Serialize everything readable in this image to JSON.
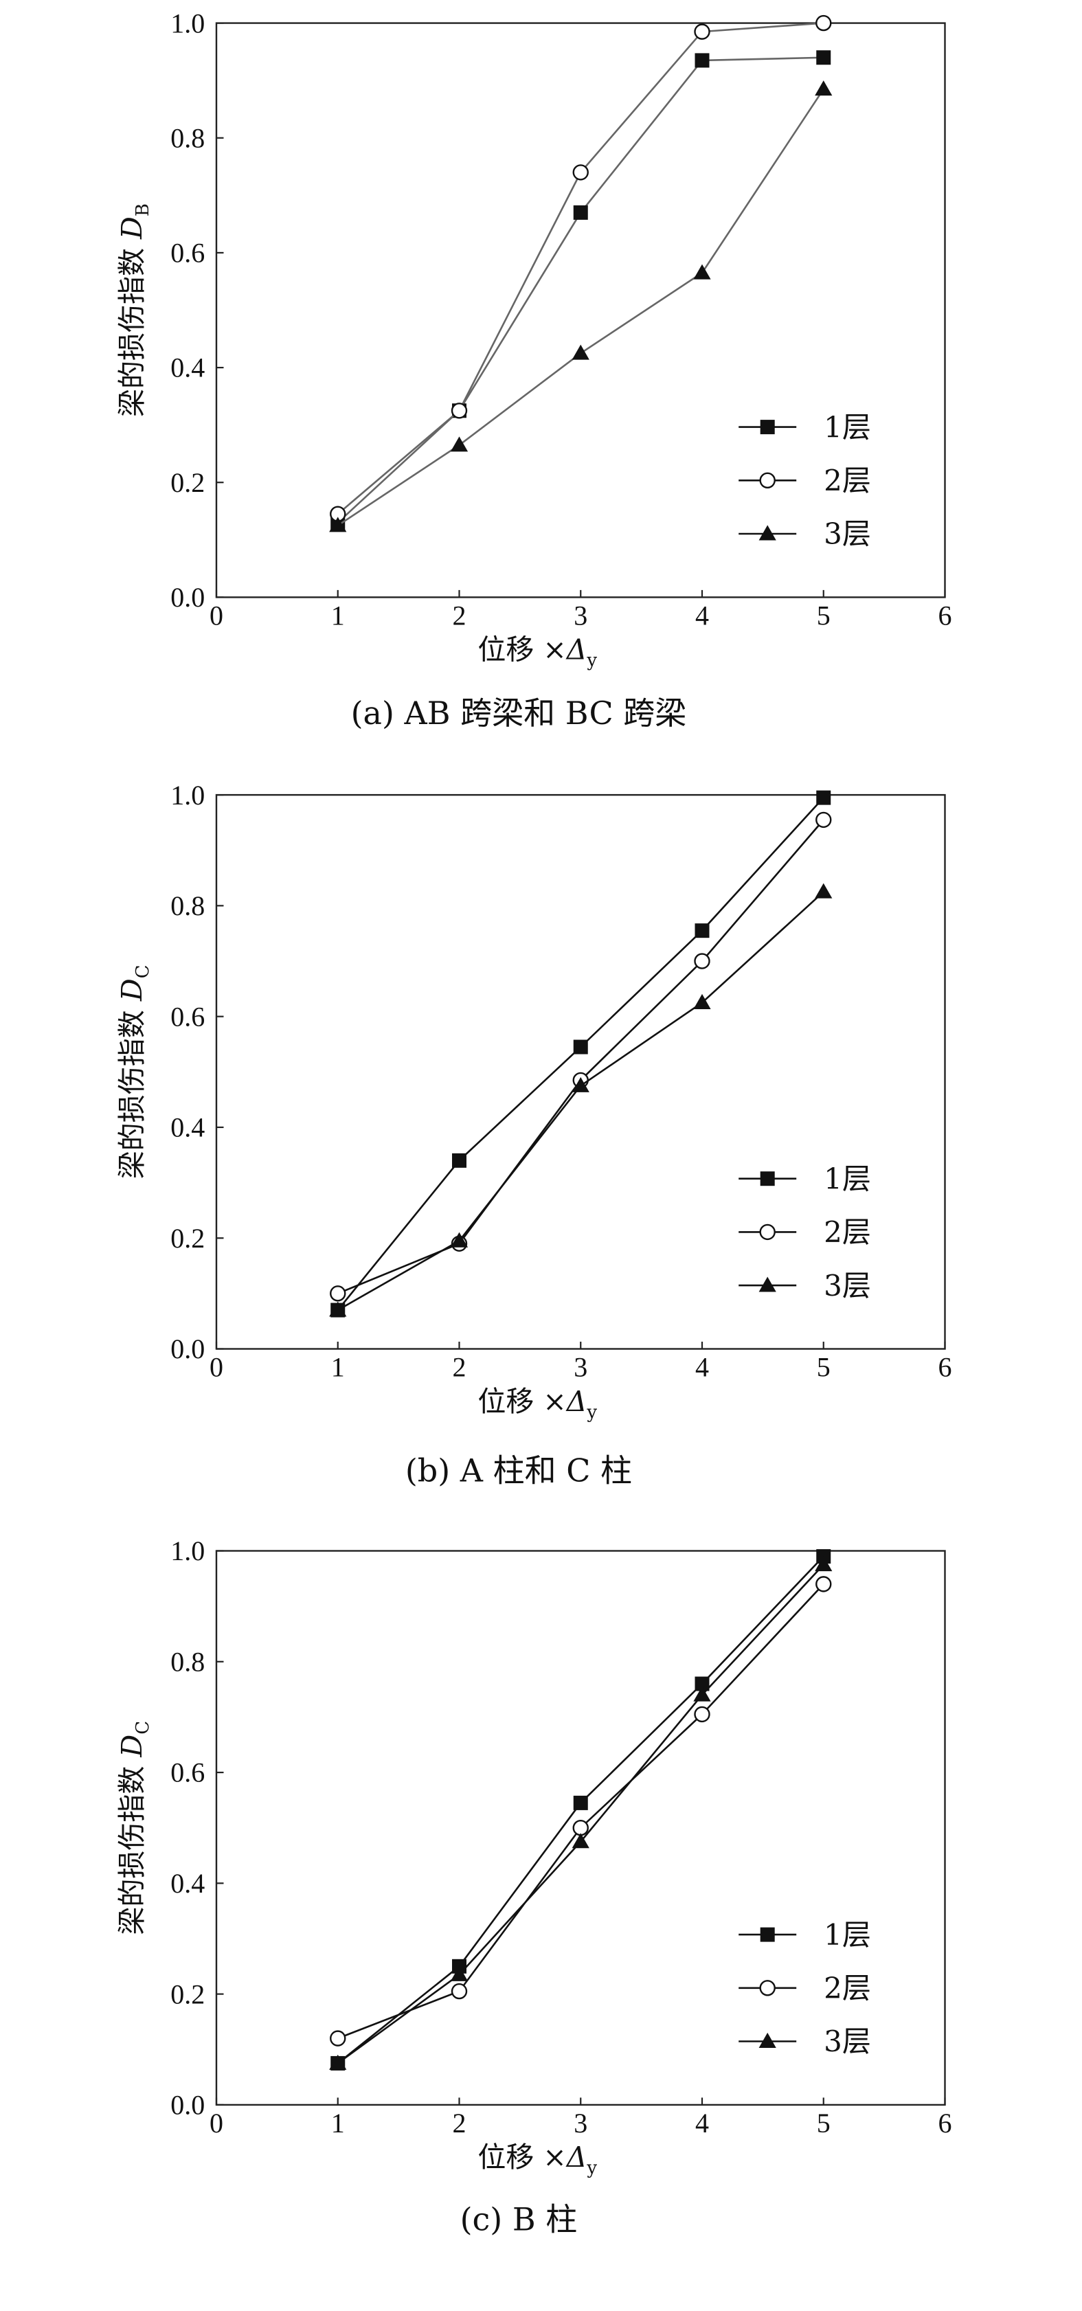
{
  "chart_data": [
    {
      "type": "line",
      "caption": "(a) AB 跨梁和 BC 跨梁",
      "xlabel": "位移 ×Δy",
      "ylabel": "梁的损伤指数 DB",
      "xlim": [
        0,
        6
      ],
      "ylim": [
        0,
        1.0
      ],
      "xticks": [
        "0",
        "1",
        "2",
        "3",
        "4",
        "5",
        "6"
      ],
      "yticks": [
        "0.0",
        "0.2",
        "0.4",
        "0.6",
        "0.8",
        "1.0"
      ],
      "legend_position": "bottom-right",
      "line_color": "#666666",
      "x": [
        1,
        2,
        3,
        4,
        5
      ],
      "series": [
        {
          "name": "1层",
          "marker": "square",
          "values": [
            0.13,
            0.325,
            0.67,
            0.935,
            0.94
          ]
        },
        {
          "name": "2层",
          "marker": "circle",
          "values": [
            0.145,
            0.325,
            0.74,
            0.985,
            1.0
          ]
        },
        {
          "name": "3层",
          "marker": "triangle",
          "values": [
            0.125,
            0.265,
            0.425,
            0.565,
            0.885
          ]
        }
      ]
    },
    {
      "type": "line",
      "caption": "(b) A 柱和 C 柱",
      "xlabel": "位移 ×Δy",
      "ylabel": "梁的损伤指数 DC",
      "xlim": [
        0,
        6
      ],
      "ylim": [
        0,
        1.0
      ],
      "xticks": [
        "0",
        "1",
        "2",
        "3",
        "4",
        "5",
        "6"
      ],
      "yticks": [
        "0.0",
        "0.2",
        "0.4",
        "0.6",
        "0.8",
        "1.0"
      ],
      "legend_position": "bottom-right",
      "line_color": "#111111",
      "x": [
        1,
        2,
        3,
        4,
        5
      ],
      "series": [
        {
          "name": "1层",
          "marker": "square",
          "values": [
            0.07,
            0.34,
            0.545,
            0.755,
            0.995
          ]
        },
        {
          "name": "2层",
          "marker": "circle",
          "values": [
            0.1,
            0.19,
            0.485,
            0.7,
            0.955
          ]
        },
        {
          "name": "3层",
          "marker": "triangle",
          "values": [
            0.07,
            0.195,
            0.475,
            0.625,
            0.825
          ]
        }
      ]
    },
    {
      "type": "line",
      "caption": "(c) B 柱",
      "xlabel": "位移 ×Δy",
      "ylabel": "梁的损伤指数 DC",
      "xlim": [
        0,
        6
      ],
      "ylim": [
        0,
        1.0
      ],
      "xticks": [
        "0",
        "1",
        "2",
        "3",
        "4",
        "5",
        "6"
      ],
      "yticks": [
        "0.0",
        "0.2",
        "0.4",
        "0.6",
        "0.8",
        "1.0"
      ],
      "legend_position": "bottom-right",
      "line_color": "#111111",
      "x": [
        1,
        2,
        3,
        4,
        5
      ],
      "series": [
        {
          "name": "1层",
          "marker": "square",
          "values": [
            0.075,
            0.25,
            0.545,
            0.76,
            0.99
          ]
        },
        {
          "name": "2层",
          "marker": "circle",
          "values": [
            0.12,
            0.205,
            0.5,
            0.705,
            0.94
          ]
        },
        {
          "name": "3层",
          "marker": "triangle",
          "values": [
            0.075,
            0.235,
            0.475,
            0.74,
            0.975
          ]
        }
      ]
    }
  ]
}
